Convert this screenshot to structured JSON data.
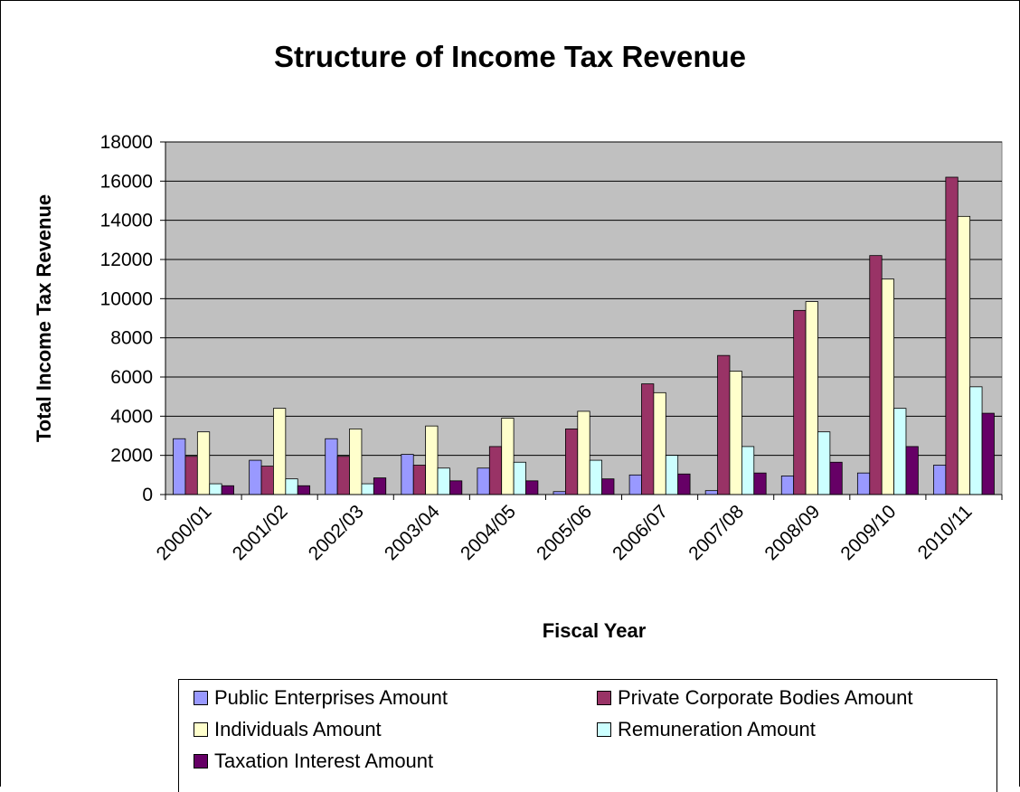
{
  "chart_data": {
    "type": "bar",
    "title": "Structure of Income Tax Revenue",
    "xlabel": "Fiscal Year",
    "ylabel": "Total Income Tax Revenue",
    "ylim": [
      0,
      18000
    ],
    "yticks": [
      "0",
      "2000",
      "4000",
      "6000",
      "8000",
      "10000",
      "12000",
      "14000",
      "16000",
      "18000"
    ],
    "categories": [
      "2000/01",
      "2001/02",
      "2002/03",
      "2003/04",
      "2004/05",
      "2005/06",
      "2006/07",
      "2007/08",
      "2008/09",
      "2009/10",
      "2010/11"
    ],
    "grid": true,
    "plot_background": "#c0c0c0",
    "legend_position": "bottom",
    "series": [
      {
        "name": "Public Enterprises Amount",
        "color": "#9999ff",
        "values": [
          2850,
          1750,
          2850,
          2050,
          1350,
          150,
          1000,
          200,
          950,
          1100,
          1500
        ]
      },
      {
        "name": "Private Corporate Bodies Amount",
        "color": "#993366",
        "values": [
          1950,
          1450,
          1950,
          1500,
          2450,
          3350,
          5650,
          7100,
          9400,
          12200,
          16200
        ]
      },
      {
        "name": "Individuals Amount",
        "color": "#ffffcc",
        "values": [
          3200,
          4400,
          3350,
          3500,
          3900,
          4250,
          5200,
          6300,
          9850,
          11000,
          14200
        ]
      },
      {
        "name": "Remuneration Amount",
        "color": "#ccffff",
        "values": [
          550,
          800,
          550,
          1350,
          1650,
          1750,
          2000,
          2450,
          3200,
          4400,
          5500
        ]
      },
      {
        "name": "Taxation Interest Amount",
        "color": "#660066",
        "values": [
          450,
          450,
          850,
          700,
          700,
          800,
          1050,
          1100,
          1650,
          2450,
          4150
        ]
      }
    ]
  },
  "legend": {
    "items": [
      {
        "label": "Public Enterprises Amount",
        "color": "#9999ff"
      },
      {
        "label": "Private Corporate Bodies Amount",
        "color": "#993366"
      },
      {
        "label": "Individuals Amount",
        "color": "#ffffcc"
      },
      {
        "label": "Remuneration Amount",
        "color": "#ccffff"
      },
      {
        "label": "Taxation Interest Amount",
        "color": "#660066"
      }
    ]
  }
}
